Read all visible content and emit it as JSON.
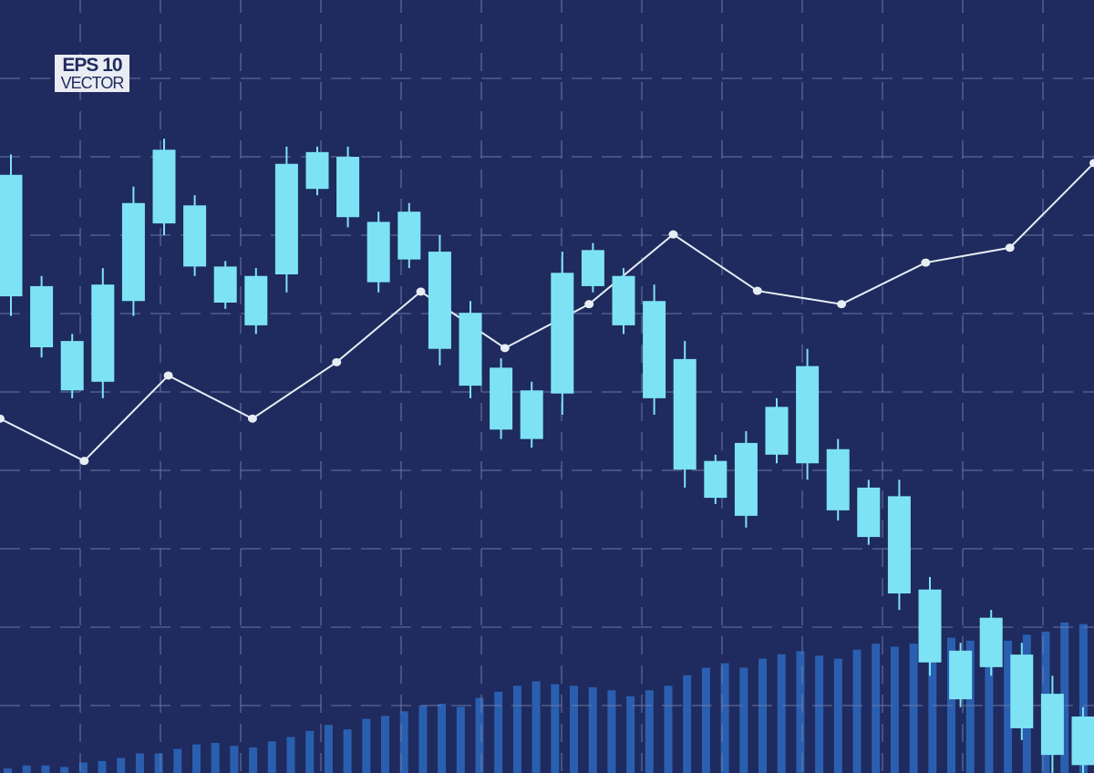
{
  "badge": {
    "line1": "EPS 10",
    "line2": "VECTOR"
  },
  "colors": {
    "background": "#1f2a5e",
    "candle": "#7de3f4",
    "volume": "#2a5fb0",
    "line": "#e6eef3",
    "grid": "#6f7daa"
  },
  "chart_data": {
    "type": "candlestick",
    "title": "",
    "xlabel": "",
    "ylabel": "",
    "ylim": [
      0,
      100
    ],
    "grid": true,
    "grid_style": "dashed",
    "legend": "none",
    "candles": [
      {
        "high": 80.3,
        "body_high": 77.7,
        "body_low": 62.2,
        "low": 59.7
      },
      {
        "high": 64.8,
        "body_high": 63.5,
        "body_low": 55.7,
        "low": 54.4
      },
      {
        "high": 57.4,
        "body_high": 56.5,
        "body_low": 50.2,
        "low": 49.2
      },
      {
        "high": 65.8,
        "body_high": 63.7,
        "body_low": 51.3,
        "low": 49.2
      },
      {
        "high": 76.2,
        "body_high": 74.1,
        "body_low": 61.6,
        "low": 59.7
      },
      {
        "high": 82.3,
        "body_high": 80.9,
        "body_low": 71.5,
        "low": 70.0
      },
      {
        "high": 75.1,
        "body_high": 73.8,
        "body_low": 66.0,
        "low": 64.8
      },
      {
        "high": 66.7,
        "body_high": 66.0,
        "body_low": 61.4,
        "low": 60.6
      },
      {
        "high": 65.8,
        "body_high": 64.8,
        "body_low": 58.5,
        "low": 57.4
      },
      {
        "high": 81.3,
        "body_high": 79.1,
        "body_low": 65.0,
        "low": 62.7
      },
      {
        "high": 81.3,
        "body_high": 80.6,
        "body_low": 75.9,
        "low": 75.1
      },
      {
        "high": 81.3,
        "body_high": 80.0,
        "body_low": 72.3,
        "low": 71.0
      },
      {
        "high": 73.0,
        "body_high": 71.7,
        "body_low": 64.0,
        "low": 62.7
      },
      {
        "high": 74.1,
        "body_high": 73.0,
        "body_low": 66.9,
        "low": 65.8
      },
      {
        "high": 70.0,
        "body_high": 67.9,
        "body_low": 55.5,
        "low": 53.4
      },
      {
        "high": 61.6,
        "body_high": 60.1,
        "body_low": 50.8,
        "low": 49.2
      },
      {
        "high": 54.3,
        "body_high": 53.1,
        "body_low": 45.2,
        "low": 44.0
      },
      {
        "high": 51.3,
        "body_high": 50.2,
        "body_low": 44.0,
        "low": 42.9
      },
      {
        "high": 67.9,
        "body_high": 65.2,
        "body_low": 49.8,
        "low": 47.1
      },
      {
        "high": 69.0,
        "body_high": 68.1,
        "body_low": 63.5,
        "low": 62.7
      },
      {
        "high": 65.8,
        "body_high": 64.8,
        "body_low": 58.5,
        "low": 57.4
      },
      {
        "high": 63.7,
        "body_high": 61.6,
        "body_low": 49.2,
        "low": 47.1
      },
      {
        "high": 56.5,
        "body_high": 54.2,
        "body_low": 40.1,
        "low": 37.8
      },
      {
        "high": 42.0,
        "body_high": 41.2,
        "body_low": 36.5,
        "low": 35.7
      },
      {
        "high": 45.0,
        "body_high": 43.5,
        "body_low": 34.2,
        "low": 32.7
      },
      {
        "high": 49.2,
        "body_high": 48.1,
        "body_low": 42.0,
        "low": 40.9
      },
      {
        "high": 55.5,
        "body_high": 53.3,
        "body_low": 40.9,
        "low": 38.8
      },
      {
        "high": 44.0,
        "body_high": 42.7,
        "body_low": 34.9,
        "low": 33.6
      },
      {
        "high": 38.8,
        "body_high": 37.8,
        "body_low": 31.5,
        "low": 30.5
      },
      {
        "high": 38.8,
        "body_high": 36.7,
        "body_low": 24.3,
        "low": 22.2
      },
      {
        "high": 26.4,
        "body_high": 24.8,
        "body_low": 15.5,
        "low": 13.8
      },
      {
        "high": 18.0,
        "body_high": 17.0,
        "body_low": 10.8,
        "low": 9.8
      },
      {
        "high": 22.2,
        "body_high": 21.2,
        "body_low": 14.9,
        "low": 13.8
      },
      {
        "high": 18.0,
        "body_high": 16.5,
        "body_low": 7.1,
        "low": 5.6
      },
      {
        "high": 13.8,
        "body_high": 11.5,
        "body_low": 3.7,
        "low": 0.6
      },
      {
        "high": 9.8,
        "body_high": 8.6,
        "body_low": 2.4,
        "low": 0.0
      }
    ],
    "line": [
      46.6,
      41.2,
      52.1,
      46.6,
      53.8,
      62.8,
      55.6,
      61.2,
      70.1,
      62.9,
      61.2,
      66.5,
      68.4,
      79.2
    ],
    "volume": [
      3,
      5,
      5,
      4,
      7,
      8,
      10,
      13,
      13,
      16,
      19,
      20,
      18,
      17,
      21,
      24,
      28,
      32,
      29,
      36,
      38,
      41,
      45,
      46,
      44,
      50,
      54,
      58,
      61,
      59,
      58,
      57,
      55,
      51,
      55,
      58,
      65,
      70,
      73,
      70,
      76,
      79,
      81,
      78,
      76,
      82,
      86,
      84,
      86,
      88,
      90,
      88,
      90,
      88,
      92,
      94,
      100,
      99
    ]
  }
}
